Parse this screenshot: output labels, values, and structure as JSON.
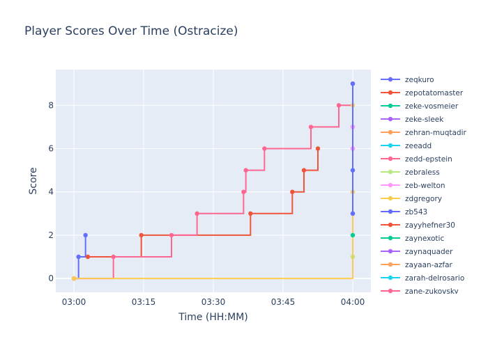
{
  "chart_data": {
    "type": "line",
    "line_shape": "step-hv",
    "title": "Player Scores Over Time (Ostracize)",
    "xlabel": "Time (HH:MM)",
    "ylabel": "Score",
    "x_unit": "minutes after 03:00",
    "xlim": [
      -3.9,
      63.9
    ],
    "ylim": [
      -0.64,
      9.65
    ],
    "x_ticks": [
      {
        "v": 0,
        "label": "03:00"
      },
      {
        "v": 15,
        "label": "03:15"
      },
      {
        "v": 30,
        "label": "03:30"
      },
      {
        "v": 45,
        "label": "03:45"
      },
      {
        "v": 60,
        "label": "04:00"
      }
    ],
    "y_ticks": [
      {
        "v": 0,
        "label": "0"
      },
      {
        "v": 2,
        "label": "2"
      },
      {
        "v": 4,
        "label": "4"
      },
      {
        "v": 6,
        "label": "6"
      },
      {
        "v": 8,
        "label": "8"
      }
    ],
    "grid": true,
    "legend_position": "right",
    "series": [
      {
        "name": "zeqkuro",
        "color": "#636efa",
        "points": [
          [
            0,
            0
          ],
          [
            1,
            1
          ],
          [
            2.5,
            2
          ]
        ]
      },
      {
        "name": "zepotatomaster",
        "color": "#EF553B",
        "points": [
          [
            3,
            1
          ],
          [
            14.5,
            2
          ],
          [
            38,
            3
          ],
          [
            47,
            4
          ],
          [
            49.5,
            5
          ],
          [
            52.5,
            6
          ]
        ]
      },
      {
        "name": "zeke-vosmeier",
        "color": "#00cc96",
        "points": []
      },
      {
        "name": "zeke-sleek",
        "color": "#ab63fa",
        "points": [
          [
            60,
            3
          ],
          [
            60,
            7
          ],
          [
            60,
            9
          ]
        ]
      },
      {
        "name": "zehran-muqtadir",
        "color": "#FFA15A",
        "points": []
      },
      {
        "name": "zeeadd",
        "color": "#19d3f3",
        "points": []
      },
      {
        "name": "zedd-epstein",
        "color": "#FF6692",
        "points": [
          [
            0,
            0
          ],
          [
            8.5,
            1
          ],
          [
            21,
            2
          ],
          [
            26.5,
            3
          ],
          [
            36.5,
            4
          ],
          [
            37,
            5
          ],
          [
            41,
            6
          ],
          [
            51,
            7
          ],
          [
            57,
            8
          ],
          [
            60,
            6
          ]
        ]
      },
      {
        "name": "zebraless",
        "color": "#B6E880",
        "points": [
          [
            60,
            1
          ],
          [
            60,
            4
          ]
        ]
      },
      {
        "name": "zeb-welton",
        "color": "#FF97FF",
        "points": [
          [
            60,
            6
          ],
          [
            60,
            7
          ]
        ]
      },
      {
        "name": "zdgregory",
        "color": "#FECB52",
        "points": [
          [
            0,
            0
          ],
          [
            60,
            4
          ],
          [
            60,
            8
          ]
        ]
      },
      {
        "name": "zb543",
        "color": "#636efa",
        "points": [
          [
            60,
            3
          ],
          [
            60,
            5
          ],
          [
            60,
            9
          ]
        ]
      },
      {
        "name": "zayyhefner30",
        "color": "#EF553B",
        "points": []
      },
      {
        "name": "zaynexotic",
        "color": "#00cc96",
        "points": [
          [
            60,
            2
          ]
        ]
      },
      {
        "name": "zaynaquader",
        "color": "#ab63fa",
        "points": []
      },
      {
        "name": "zayaan-azfar",
        "color": "#FFA15A",
        "points": []
      },
      {
        "name": "zarah-delrosario",
        "color": "#19d3f3",
        "points": []
      },
      {
        "name": "zane-zukovsky",
        "color": "#FF6692",
        "points": []
      }
    ]
  }
}
